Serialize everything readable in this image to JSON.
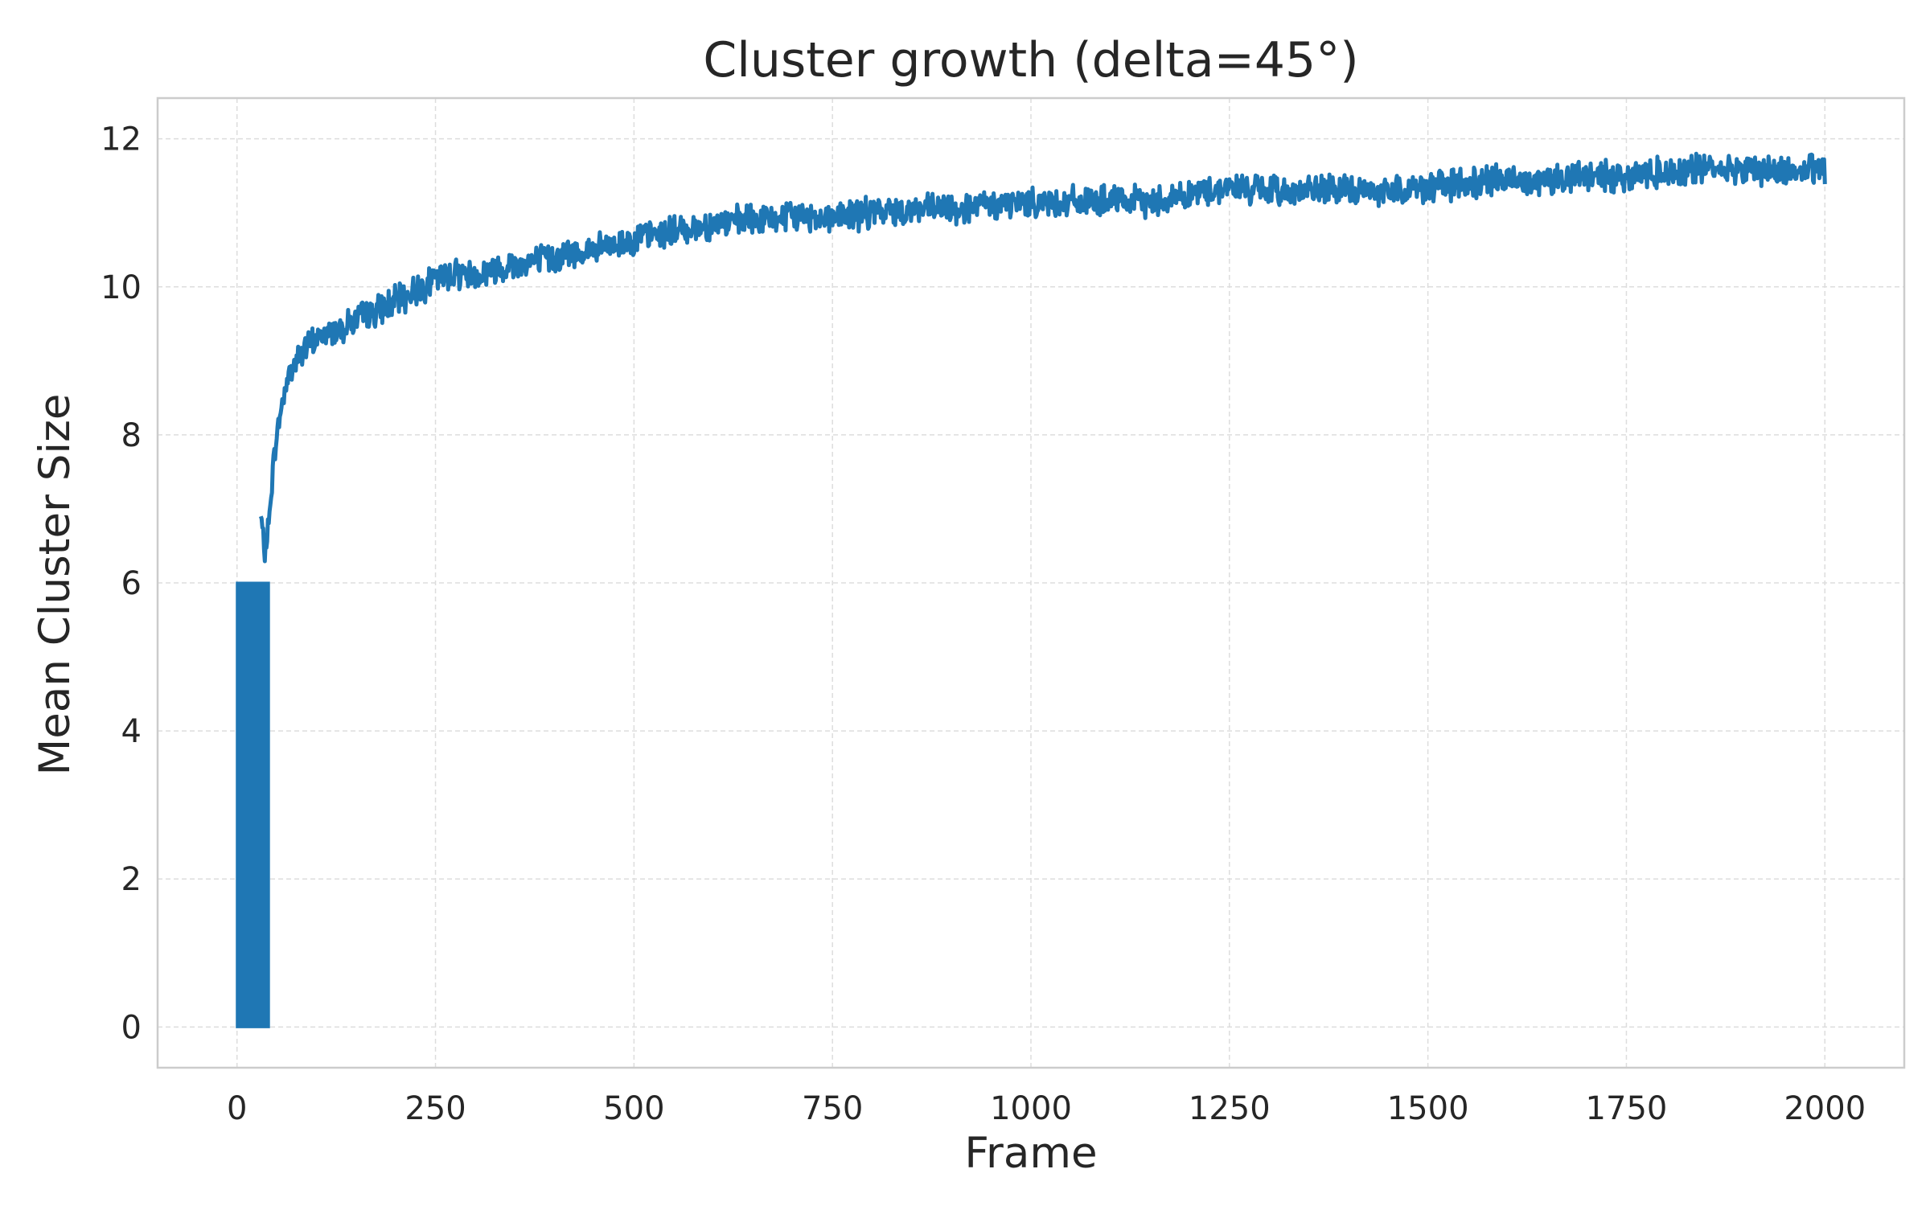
{
  "chart_data": {
    "type": "line",
    "title": "Cluster growth (delta=45°)",
    "xlabel": "Frame",
    "ylabel": "Mean Cluster Size",
    "xlim": [
      -100,
      2100
    ],
    "ylim": [
      -0.55,
      12.55
    ],
    "xticks": [
      0,
      250,
      500,
      750,
      1000,
      1250,
      1500,
      1750,
      2000
    ],
    "yticks": [
      0,
      2,
      4,
      6,
      8,
      10,
      12
    ],
    "xtick_labels": [
      "0",
      "250",
      "500",
      "750",
      "1000",
      "1250",
      "1500",
      "1750",
      "2000"
    ],
    "ytick_labels": [
      "0",
      "2",
      "4",
      "6",
      "8",
      "10",
      "12"
    ],
    "grid": true,
    "legend": "none",
    "colors": {
      "line": "#1f77b4",
      "grid": "#dddddd",
      "frame": "#cccccc",
      "text": "#262626"
    },
    "series": [
      {
        "frames": [
          0,
          40
        ],
        "values": [
          0,
          6
        ],
        "note_segment": "oscillating between 0 and 6"
      },
      {
        "x": [
          30,
          35,
          40,
          45,
          50,
          55,
          60,
          65,
          70,
          75,
          80,
          90,
          100,
          120,
          140,
          160,
          180,
          200,
          225,
          250,
          275,
          300,
          325,
          350,
          375,
          400,
          425,
          450,
          475,
          500,
          550,
          600,
          650,
          700,
          750,
          800,
          850,
          900,
          950,
          1000,
          1050,
          1100,
          1150,
          1200,
          1250,
          1300,
          1350,
          1400,
          1450,
          1500,
          1550,
          1600,
          1650,
          1700,
          1750,
          1800,
          1850,
          1900,
          1950,
          2000
        ],
        "y": [
          6.9,
          6.4,
          6.8,
          7.5,
          8.0,
          8.3,
          8.6,
          8.8,
          8.9,
          9.0,
          9.1,
          9.2,
          9.3,
          9.4,
          9.5,
          9.6,
          9.7,
          9.8,
          9.95,
          10.1,
          10.2,
          10.15,
          10.25,
          10.3,
          10.35,
          10.4,
          10.45,
          10.5,
          10.55,
          10.65,
          10.75,
          10.85,
          10.9,
          10.95,
          10.95,
          11.0,
          11.05,
          11.05,
          11.1,
          11.15,
          11.15,
          11.15,
          11.15,
          11.25,
          11.35,
          11.3,
          11.3,
          11.3,
          11.3,
          11.35,
          11.4,
          11.45,
          11.45,
          11.5,
          11.5,
          11.55,
          11.6,
          11.6,
          11.55,
          11.6
        ]
      }
    ]
  }
}
